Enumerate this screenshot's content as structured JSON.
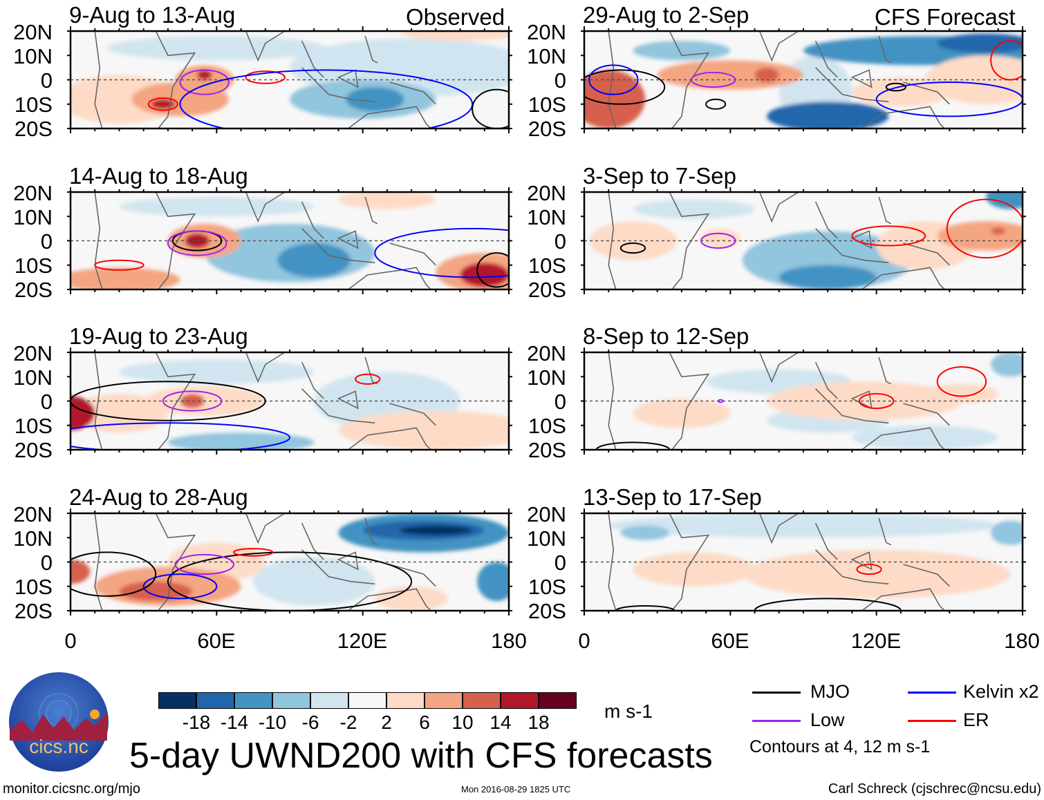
{
  "header": {
    "observed_label": "Observed",
    "forecast_label": "CFS Forecast"
  },
  "lat_labels": [
    "20N",
    "10N",
    "0",
    "10S",
    "20S"
  ],
  "lon_labels": [
    "0",
    "60E",
    "120E",
    "180"
  ],
  "colors": {
    "mjo": "#000000",
    "kelvin": "#0000ff",
    "low": "#a020f0",
    "er": "#ff0000",
    "coast": "#666666"
  },
  "colorbar": {
    "colors": [
      "#053061",
      "#2166ac",
      "#4393c3",
      "#92c5de",
      "#d1e5f0",
      "#f7f7f7",
      "#fddbc7",
      "#f4a582",
      "#d6604d",
      "#b2182b",
      "#67001f"
    ],
    "labels": [
      "-18",
      "-14",
      "-10",
      "-6",
      "-2",
      "2",
      "6",
      "10",
      "14",
      "18"
    ],
    "units": "m s-1"
  },
  "panels": [
    {
      "title": "9-Aug to 13-Aug",
      "blobs": [
        [
          60,
          13,
          45,
          5,
          -4
        ],
        [
          140,
          5,
          50,
          12,
          -4
        ],
        [
          120,
          -8,
          30,
          8,
          -8
        ],
        [
          125,
          -8,
          12,
          5,
          -12
        ],
        [
          20,
          -8,
          25,
          10,
          4
        ],
        [
          45,
          -8,
          20,
          7,
          8
        ],
        [
          55,
          0,
          12,
          6,
          8
        ],
        [
          38,
          -10,
          5,
          2,
          16
        ],
        [
          55,
          2,
          3,
          2,
          16
        ],
        [
          160,
          20,
          25,
          4,
          4
        ]
      ],
      "contours": [
        [
          55,
          -1,
          10,
          5,
          "low"
        ],
        [
          38,
          -10,
          6,
          2.5,
          "er"
        ],
        [
          80,
          1,
          8,
          2.5,
          "er"
        ],
        [
          105,
          -10,
          60,
          14,
          "kelvin"
        ],
        [
          175,
          -12,
          10,
          8,
          "mjo"
        ]
      ]
    },
    {
      "title": "14-Aug to 18-Aug",
      "blobs": [
        [
          90,
          -5,
          35,
          12,
          -8
        ],
        [
          100,
          -8,
          15,
          7,
          -12
        ],
        [
          60,
          14,
          40,
          4,
          -4
        ],
        [
          55,
          0,
          15,
          7,
          8
        ],
        [
          52,
          0,
          5,
          3,
          16
        ],
        [
          20,
          -16,
          25,
          5,
          8
        ],
        [
          170,
          -13,
          20,
          8,
          10
        ],
        [
          170,
          -14,
          10,
          5,
          16
        ],
        [
          130,
          17,
          20,
          4,
          4
        ]
      ],
      "contours": [
        [
          52,
          0,
          10,
          4,
          "mjo"
        ],
        [
          52,
          -1,
          12,
          5,
          "low"
        ],
        [
          165,
          -5,
          40,
          10,
          "kelvin"
        ],
        [
          20,
          -10,
          10,
          2,
          "er"
        ],
        [
          175,
          -12,
          8,
          7,
          "mjo"
        ]
      ]
    },
    {
      "title": "19-Aug to 23-Aug",
      "blobs": [
        [
          130,
          0,
          30,
          12,
          -4
        ],
        [
          60,
          12,
          40,
          5,
          -4
        ],
        [
          70,
          -17,
          30,
          4,
          -6
        ],
        [
          20,
          -5,
          20,
          8,
          4
        ],
        [
          55,
          0,
          25,
          6,
          6
        ],
        [
          50,
          0,
          5,
          3,
          12
        ],
        [
          150,
          -12,
          40,
          8,
          4
        ],
        [
          0,
          -5,
          10,
          7,
          16
        ]
      ],
      "contours": [
        [
          50,
          0,
          12,
          4,
          "low"
        ],
        [
          122,
          9,
          5,
          2,
          "er"
        ],
        [
          40,
          0,
          40,
          8,
          "mjo"
        ],
        [
          40,
          -15,
          50,
          6,
          "kelvin"
        ]
      ]
    },
    {
      "title": "24-Aug to 28-Aug",
      "blobs": [
        [
          100,
          -8,
          25,
          10,
          -4
        ],
        [
          145,
          12,
          35,
          8,
          -10
        ],
        [
          145,
          13,
          25,
          4,
          -14
        ],
        [
          150,
          13,
          15,
          2,
          -18
        ],
        [
          175,
          -8,
          8,
          8,
          -10
        ],
        [
          60,
          0,
          20,
          8,
          4
        ],
        [
          40,
          -10,
          30,
          8,
          8
        ],
        [
          35,
          -12,
          15,
          4,
          14
        ],
        [
          0,
          -4,
          8,
          5,
          12
        ],
        [
          140,
          -15,
          15,
          5,
          6
        ]
      ],
      "contours": [
        [
          90,
          -8,
          50,
          12,
          "mjo"
        ],
        [
          55,
          -1,
          12,
          4,
          "low"
        ],
        [
          45,
          -10,
          15,
          5,
          "kelvin"
        ],
        [
          15,
          -5,
          20,
          9,
          "mjo"
        ],
        [
          75,
          4,
          8,
          1.5,
          "er"
        ]
      ]
    },
    {
      "title": "29-Aug to 2-Sep",
      "blobs": [
        [
          95,
          -5,
          15,
          15,
          -4
        ],
        [
          40,
          12,
          20,
          4,
          -6
        ],
        [
          140,
          12,
          50,
          6,
          -10
        ],
        [
          165,
          15,
          20,
          4,
          -14
        ],
        [
          100,
          -15,
          25,
          6,
          -14
        ],
        [
          165,
          0,
          25,
          10,
          4
        ],
        [
          130,
          -5,
          20,
          6,
          6
        ],
        [
          60,
          2,
          30,
          6,
          8
        ],
        [
          75,
          2,
          5,
          3,
          12
        ],
        [
          10,
          -8,
          15,
          12,
          14
        ]
      ],
      "contours": [
        [
          15,
          -3,
          18,
          7,
          "mjo"
        ],
        [
          12,
          0,
          10,
          6,
          "kelvin"
        ],
        [
          53,
          0,
          9,
          3,
          "low"
        ],
        [
          54,
          -10,
          4,
          2,
          "mjo"
        ],
        [
          150,
          -8,
          30,
          7,
          "kelvin"
        ],
        [
          175,
          8,
          8,
          8,
          "er"
        ],
        [
          128,
          -3,
          4,
          1.5,
          "mjo"
        ]
      ]
    },
    {
      "title": "3-Sep to 7-Sep",
      "blobs": [
        [
          100,
          -8,
          35,
          12,
          -8
        ],
        [
          100,
          -15,
          20,
          5,
          -10
        ],
        [
          175,
          18,
          10,
          5,
          -10
        ],
        [
          45,
          13,
          25,
          4,
          -4
        ],
        [
          20,
          0,
          18,
          8,
          6
        ],
        [
          56,
          1,
          8,
          4,
          6
        ],
        [
          140,
          -2,
          20,
          10,
          4
        ],
        [
          165,
          2,
          20,
          6,
          8
        ],
        [
          170,
          4,
          3,
          1.5,
          14
        ]
      ],
      "contours": [
        [
          55,
          0,
          7,
          3,
          "low"
        ],
        [
          20,
          -3,
          5,
          2,
          "mjo"
        ],
        [
          165,
          5,
          16,
          12,
          "er"
        ],
        [
          125,
          2,
          15,
          4,
          "er"
        ]
      ]
    },
    {
      "title": "8-Sep to 12-Sep",
      "blobs": [
        [
          80,
          8,
          30,
          5,
          -4
        ],
        [
          100,
          -8,
          25,
          5,
          -2
        ],
        [
          140,
          -15,
          30,
          5,
          -4
        ],
        [
          175,
          15,
          8,
          5,
          -6
        ],
        [
          115,
          0,
          40,
          8,
          4
        ],
        [
          155,
          3,
          15,
          4,
          6
        ],
        [
          40,
          -5,
          20,
          6,
          4
        ]
      ],
      "contours": [
        [
          120,
          0,
          7,
          3,
          "er"
        ],
        [
          155,
          8,
          10,
          6,
          "er"
        ],
        [
          56,
          0,
          1,
          0.5,
          "low"
        ],
        [
          20,
          -20,
          15,
          3,
          "mjo"
        ]
      ]
    },
    {
      "title": "13-Sep to 17-Sep",
      "blobs": [
        [
          90,
          15,
          80,
          5,
          -4
        ],
        [
          25,
          12,
          10,
          3,
          -6
        ],
        [
          175,
          12,
          8,
          5,
          -6
        ],
        [
          120,
          -5,
          55,
          10,
          4
        ],
        [
          45,
          -3,
          25,
          7,
          4
        ]
      ],
      "contours": [
        [
          117,
          -3,
          5,
          2,
          "er"
        ],
        [
          100,
          -20,
          30,
          5,
          "mjo"
        ],
        [
          25,
          -20,
          12,
          2,
          "mjo"
        ]
      ]
    }
  ],
  "legend": {
    "mjo": "MJO",
    "kelvin": "Kelvin x2",
    "low": "Low",
    "er": "ER",
    "contours_note": "Contours at 4, 12 m s-1"
  },
  "logo": {
    "text": "cics.nc",
    "ring_text": "Cooperative Institute for Climate and Satellites"
  },
  "title": "5-day UWND200 with CFS forecasts",
  "footer": {
    "url": "monitor.cicsnc.org/mjo",
    "timestamp": "Mon 2016-08-29 1825 UTC",
    "author": "Carl Schreck (cjschrec@ncsu.edu)"
  }
}
